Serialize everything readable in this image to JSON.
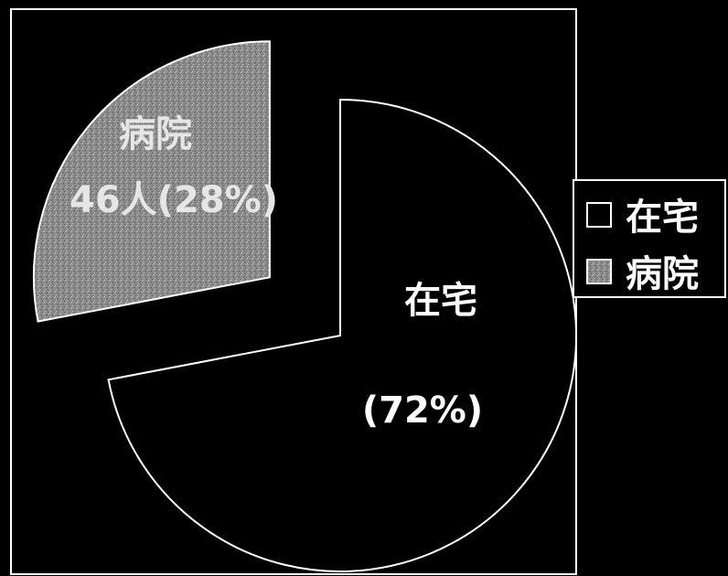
{
  "chart_data": {
    "type": "pie",
    "categories": [
      "在宅",
      "病院"
    ],
    "values": [
      72,
      28
    ],
    "slice_labels": [
      {
        "name": "在宅",
        "detail": "(72%)"
      },
      {
        "name": "病院",
        "detail": "46人(28%)"
      }
    ],
    "exploded": "病院",
    "legend": {
      "placement": "right",
      "entries": [
        {
          "label": "在宅",
          "swatch": "#000000"
        },
        {
          "label": "病院",
          "swatch": "#8a8a8a"
        }
      ]
    },
    "colors": {
      "background": "#000000",
      "outline": "#ffffff",
      "home_fill": "#000000",
      "hospital_fill": "#8a8a8a"
    }
  }
}
